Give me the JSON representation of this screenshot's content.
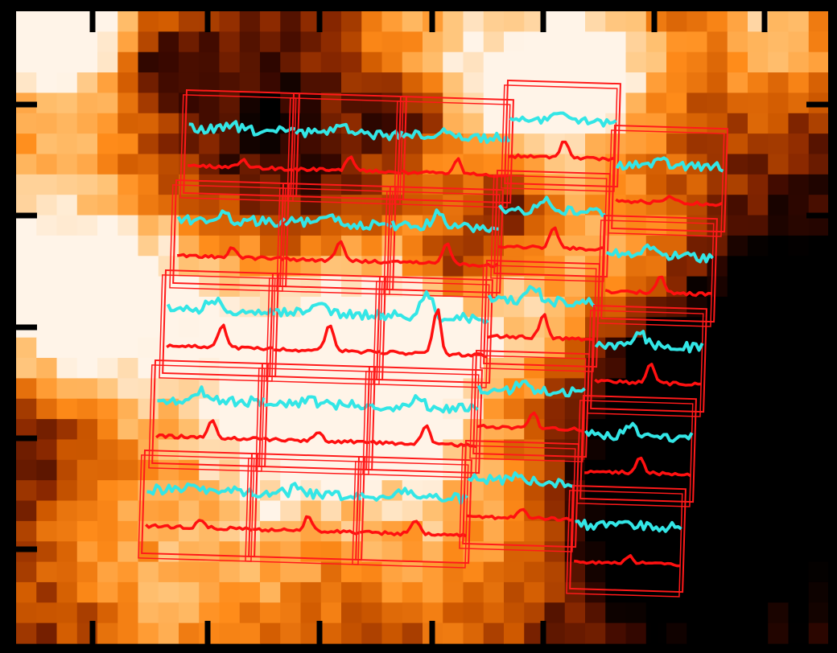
{
  "figure": {
    "kind": "false-color map with spectral-line overlays",
    "colormap": [
      "#000000",
      "#3a0800",
      "#8a2800",
      "#d05a00",
      "#ff8c1a",
      "#ffc070",
      "#fff4e8"
    ],
    "frame_color": "#000000",
    "panel_outline_color": "#ff1a1a",
    "spectrum_colors": {
      "upper_trace": "#33e6e6",
      "lower_trace": "#ff1010"
    },
    "grid_columns": 40,
    "grid_rows": 31,
    "panel_rows": 5,
    "panel_columns": 5
  }
}
